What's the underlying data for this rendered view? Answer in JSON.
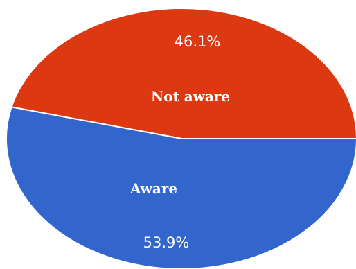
{
  "chart_data": {
    "type": "pie",
    "categories": [
      "Not aware",
      "Aware"
    ],
    "values": [
      46.1,
      53.9
    ],
    "value_labels": [
      "46.1%",
      "53.9%"
    ],
    "colors": [
      "#dc3912",
      "#3366cc"
    ],
    "title": "",
    "legend": "none"
  }
}
